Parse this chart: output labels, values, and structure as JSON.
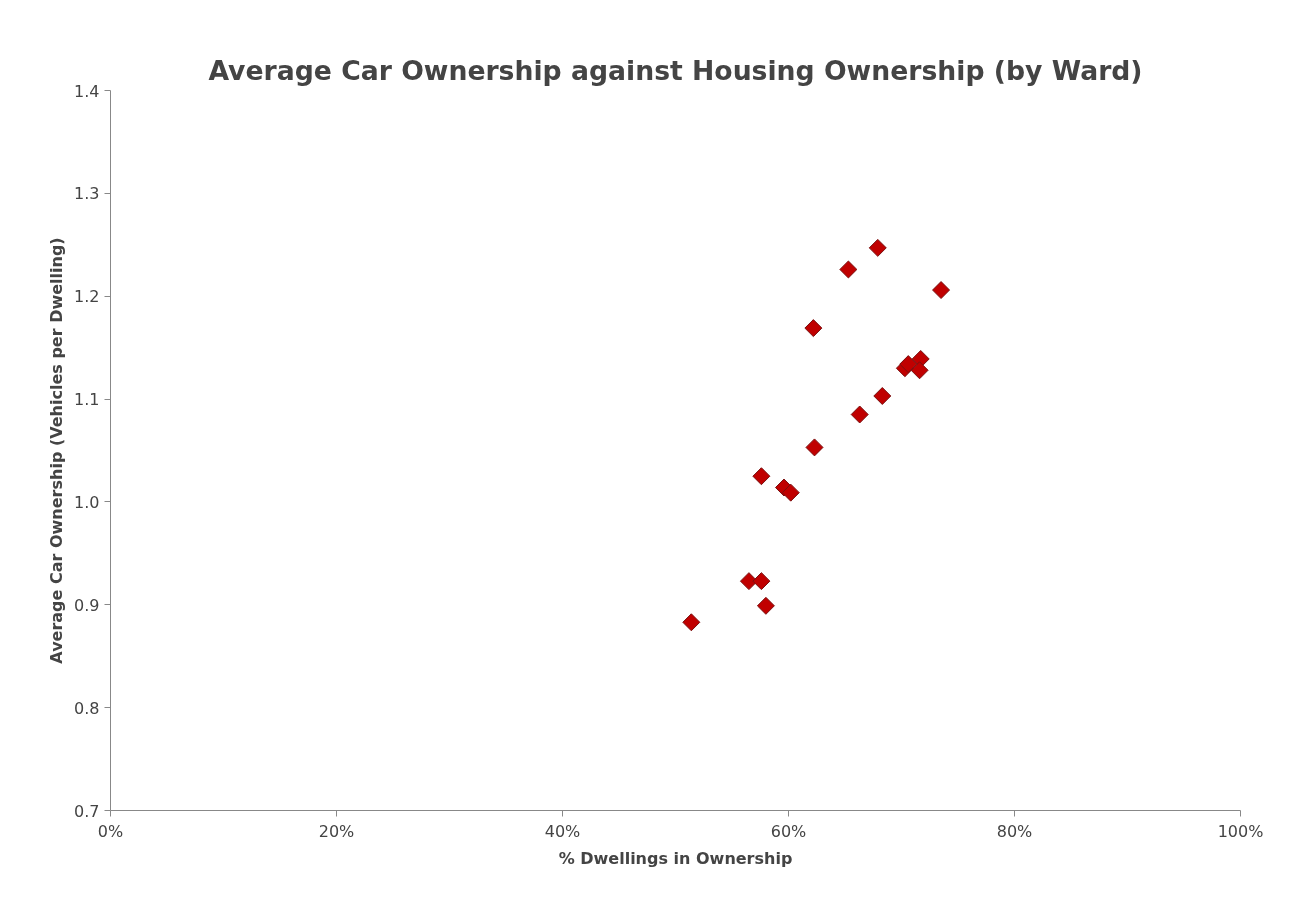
{
  "chart_data": {
    "type": "scatter",
    "title": "Average Car Ownership against Housing Ownership (by Ward)",
    "xlabel": "% Dwellings in Ownership",
    "ylabel": "Average Car Ownership (Vehicles per Dwelling)",
    "x": [
      67.9,
      65.3,
      73.5,
      62.2,
      71.7,
      71.6,
      70.3,
      70.6,
      68.3,
      66.3,
      62.3,
      57.6,
      59.6,
      60.2,
      56.5,
      57.6,
      58.0,
      51.4
    ],
    "series": [
      {
        "color": "#c00000",
        "values": [
          1.247,
          1.226,
          1.206,
          1.169,
          1.139,
          1.128,
          1.13,
          1.134,
          1.103,
          1.085,
          1.053,
          1.025,
          1.014,
          1.009,
          0.923,
          0.923,
          0.899,
          0.883
        ]
      }
    ],
    "xlim": [
      0,
      100
    ],
    "xticks": [
      {
        "value": 0,
        "label": "0%"
      },
      {
        "value": 20,
        "label": "20%"
      },
      {
        "value": 40,
        "label": "40%"
      },
      {
        "value": 60,
        "label": "60%"
      },
      {
        "value": 80,
        "label": "80%"
      },
      {
        "value": 100,
        "label": "100%"
      }
    ],
    "ylim": [
      0.7,
      1.4
    ],
    "yticks": [
      {
        "value": 0.7,
        "label": "0.7"
      },
      {
        "value": 0.8,
        "label": "0.8"
      },
      {
        "value": 0.9,
        "label": "0.9"
      },
      {
        "value": 1.0,
        "label": "1.0"
      },
      {
        "value": 1.1,
        "label": "1.1"
      },
      {
        "value": 1.2,
        "label": "1.2"
      },
      {
        "value": 1.3,
        "label": "1.3"
      },
      {
        "value": 1.4,
        "label": "1.4"
      }
    ],
    "marker": "diamond"
  }
}
